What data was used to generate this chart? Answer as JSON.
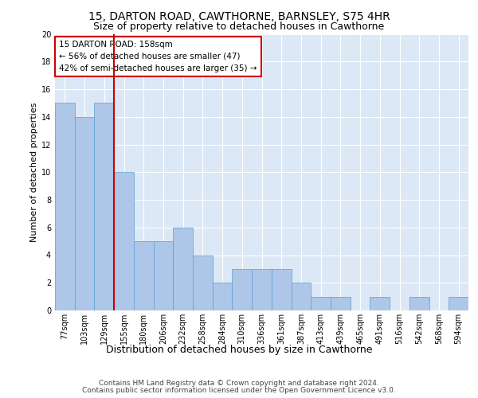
{
  "title1": "15, DARTON ROAD, CAWTHORNE, BARNSLEY, S75 4HR",
  "title2": "Size of property relative to detached houses in Cawthorne",
  "xlabel": "Distribution of detached houses by size in Cawthorne",
  "ylabel": "Number of detached properties",
  "categories": [
    "77sqm",
    "103sqm",
    "129sqm",
    "155sqm",
    "180sqm",
    "206sqm",
    "232sqm",
    "258sqm",
    "284sqm",
    "310sqm",
    "336sqm",
    "361sqm",
    "387sqm",
    "413sqm",
    "439sqm",
    "465sqm",
    "491sqm",
    "516sqm",
    "542sqm",
    "568sqm",
    "594sqm"
  ],
  "values": [
    15,
    14,
    15,
    10,
    5,
    5,
    6,
    4,
    2,
    3,
    3,
    3,
    2,
    1,
    1,
    0,
    1,
    0,
    1,
    0,
    1
  ],
  "bar_color": "#aec6e8",
  "bar_edge_color": "#5a9fd4",
  "highlight_line_color": "#cc0000",
  "annotation_text": "15 DARTON ROAD: 158sqm\n← 56% of detached houses are smaller (47)\n42% of semi-detached houses are larger (35) →",
  "annotation_box_color": "#cc0000",
  "ylim": [
    0,
    20
  ],
  "yticks": [
    0,
    2,
    4,
    6,
    8,
    10,
    12,
    14,
    16,
    18,
    20
  ],
  "footer1": "Contains HM Land Registry data © Crown copyright and database right 2024.",
  "footer2": "Contains public sector information licensed under the Open Government Licence v3.0.",
  "plot_background": "#dce8f5",
  "title1_fontsize": 10,
  "title2_fontsize": 9,
  "xlabel_fontsize": 9,
  "ylabel_fontsize": 8,
  "tick_fontsize": 7,
  "annotation_fontsize": 7.5,
  "footer_fontsize": 6.5
}
